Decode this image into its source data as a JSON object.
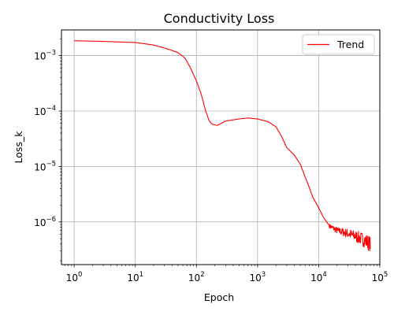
{
  "chart_data": {
    "type": "line",
    "title": "Conductivity Loss",
    "xlabel": "Epoch",
    "ylabel": "Loss_k",
    "xscale": "log",
    "yscale": "log",
    "xlim": [
      0.62,
      100000
    ],
    "ylim": [
      1.7e-07,
      0.0029
    ],
    "grid": true,
    "legend_position": "top-right",
    "x_ticks": [
      {
        "value": 1,
        "mantissa": "10",
        "exp": "0"
      },
      {
        "value": 10,
        "mantissa": "10",
        "exp": "1"
      },
      {
        "value": 100,
        "mantissa": "10",
        "exp": "2"
      },
      {
        "value": 1000,
        "mantissa": "10",
        "exp": "3"
      },
      {
        "value": 10000,
        "mantissa": "10",
        "exp": "4"
      },
      {
        "value": 100000,
        "mantissa": "10",
        "exp": "5"
      }
    ],
    "y_ticks": [
      {
        "value": 0.001,
        "mantissa": "10",
        "exp": "−3"
      },
      {
        "value": 0.0001,
        "mantissa": "10",
        "exp": "−4"
      },
      {
        "value": 1e-05,
        "mantissa": "10",
        "exp": "−5"
      },
      {
        "value": 1e-06,
        "mantissa": "10",
        "exp": "−6"
      }
    ],
    "series": [
      {
        "name": "Trend",
        "color": "#ff0000",
        "noise_from_x": 15000,
        "points": [
          [
            1,
            0.00185
          ],
          [
            3,
            0.0018
          ],
          [
            10,
            0.00172
          ],
          [
            20,
            0.00155
          ],
          [
            35,
            0.0013
          ],
          [
            50,
            0.00113
          ],
          [
            65,
            0.0009
          ],
          [
            80,
            0.0006
          ],
          [
            100,
            0.00035
          ],
          [
            120,
            0.0002
          ],
          [
            140,
            0.000105
          ],
          [
            160,
            6.8e-05
          ],
          [
            180,
            5.8e-05
          ],
          [
            220,
            5.5e-05
          ],
          [
            300,
            6.6e-05
          ],
          [
            500,
            7.2e-05
          ],
          [
            700,
            7.5e-05
          ],
          [
            1000,
            7.2e-05
          ],
          [
            1500,
            6.4e-05
          ],
          [
            2000,
            5.2e-05
          ],
          [
            2500,
            3.4e-05
          ],
          [
            3000,
            2.2e-05
          ],
          [
            4000,
            1.6e-05
          ],
          [
            5000,
            1.1e-05
          ],
          [
            6000,
            6.5e-06
          ],
          [
            7000,
            4.2e-06
          ],
          [
            8000,
            2.8e-06
          ],
          [
            10000,
            1.8e-06
          ],
          [
            12000,
            1.2e-06
          ],
          [
            15000,
            8.5e-07
          ],
          [
            20000,
            7e-07
          ],
          [
            30000,
            6.2e-07
          ],
          [
            40000,
            5.5e-07
          ],
          [
            50000,
            5e-07
          ],
          [
            60000,
            4.5e-07
          ],
          [
            70000,
            4e-07
          ]
        ]
      }
    ]
  }
}
